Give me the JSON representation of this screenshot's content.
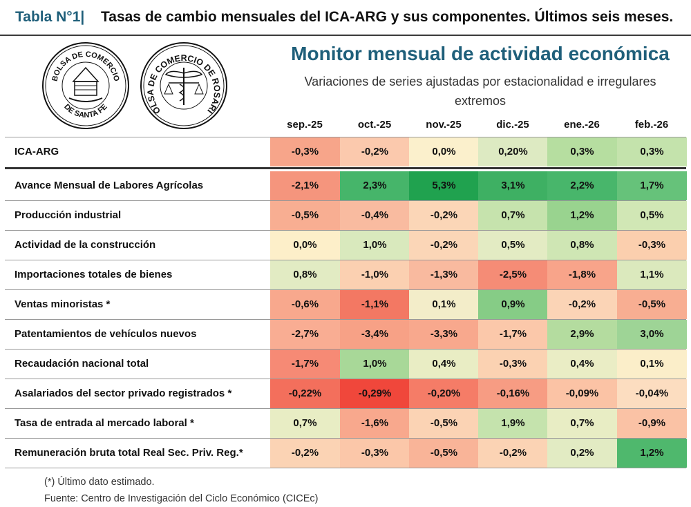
{
  "header": {
    "prefix": "Tabla N°1|",
    "title": "Tasas de cambio mensuales del ICA-ARG y sus componentes. Últimos seis meses."
  },
  "logos": {
    "seal1_text_top": "BOLSA DE COMERCIO",
    "seal1_text_bottom": "DE SANTA FE",
    "seal2_text": "BOLSA DE COMERCIO DE ROSARIO"
  },
  "monitor": {
    "title": "Monitor mensual de actividad económica",
    "subtitle_line1": "Variaciones de series ajustadas por estacionalidad e irregulares",
    "subtitle_line2": "extremos"
  },
  "chart_data": {
    "type": "table",
    "columns": [
      "sep.-25",
      "oct.-25",
      "nov.-25",
      "dic.-25",
      "ene.-26",
      "feb.-26"
    ],
    "rows": [
      {
        "label": "ICA-ARG",
        "values": [
          "-0,3%",
          "-0,2%",
          "0,0%",
          "0,20%",
          "0,3%",
          "0,3%"
        ],
        "colors": [
          "#f7a58a",
          "#fbc9ad",
          "#fbf0cc",
          "#ddeac2",
          "#b6dea0",
          "#c4e3ac"
        ]
      },
      {
        "label": "Avance Mensual de Labores Agrícolas",
        "values": [
          "-2,1%",
          "2,3%",
          "5,3%",
          "3,1%",
          "2,2%",
          "1,7%"
        ],
        "colors": [
          "#f5957d",
          "#46b56a",
          "#20a24f",
          "#3eb063",
          "#48b66b",
          "#66c27a"
        ]
      },
      {
        "label": "Producción industrial",
        "values": [
          "-0,5%",
          "-0,4%",
          "-0,2%",
          "0,7%",
          "1,2%",
          "0,5%"
        ],
        "colors": [
          "#f8ae92",
          "#f9bba0",
          "#fbd6b7",
          "#c6e3ad",
          "#99d38f",
          "#d1e7b5"
        ]
      },
      {
        "label": "Actividad de la construcción",
        "values": [
          "0,0%",
          "1,0%",
          "-0,2%",
          "0,5%",
          "0,8%",
          "-0,3%"
        ],
        "colors": [
          "#fdefc9",
          "#d9e9bd",
          "#fbd6b7",
          "#e3ebc3",
          "#cfe6b4",
          "#fbcfae"
        ]
      },
      {
        "label": "Importaciones totales de bienes",
        "values": [
          "0,8%",
          "-1,0%",
          "-1,3%",
          "-2,5%",
          "-1,8%",
          "1,1%"
        ],
        "colors": [
          "#e2ebc3",
          "#fbd0b1",
          "#f9ba9f",
          "#f58c76",
          "#f8a48a",
          "#dbe9bd"
        ]
      },
      {
        "label": "Ventas minoristas *",
        "values": [
          "-0,6%",
          "-1,1%",
          "0,1%",
          "0,9%",
          "-0,2%",
          "-0,5%"
        ],
        "colors": [
          "#f8a88d",
          "#f37863",
          "#f3edc9",
          "#86cc86",
          "#fbd4b6",
          "#f8ae92"
        ]
      },
      {
        "label": "Patentamientos de vehículos nuevos",
        "values": [
          "-2,7%",
          "-3,4%",
          "-3,3%",
          "-1,7%",
          "2,9%",
          "3,0%"
        ],
        "colors": [
          "#f9ad93",
          "#f7a186",
          "#f8a88d",
          "#fbc8aa",
          "#b4dc9f",
          "#9ed496"
        ]
      },
      {
        "label": "Recaudación nacional total",
        "values": [
          "-1,7%",
          "1,0%",
          "0,4%",
          "-0,3%",
          "0,4%",
          "0,1%"
        ],
        "colors": [
          "#f68a75",
          "#a8d898",
          "#e9edc4",
          "#fbd2b2",
          "#eaedc5",
          "#fbeec9"
        ]
      },
      {
        "label": "Asalariados del sector privado registrados *",
        "values": [
          "-0,22%",
          "-0,29%",
          "-0,20%",
          "-0,16%",
          "-0,09%",
          "-0,04%"
        ],
        "colors": [
          "#f36f5c",
          "#f0473b",
          "#f57c67",
          "#f79c83",
          "#fbc3a5",
          "#fcddc0"
        ]
      },
      {
        "label": "Tasa de entrada al mercado laboral *",
        "values": [
          "0,7%",
          "-1,6%",
          "-0,5%",
          "1,9%",
          "0,7%",
          "-0,9%"
        ],
        "colors": [
          "#e8edc4",
          "#f8a88d",
          "#fbd3b4",
          "#c5e3ad",
          "#e8edc4",
          "#fac2a5"
        ]
      },
      {
        "label": "Remuneración bruta total Real Sec. Priv. Reg.*",
        "values": [
          "-0,2%",
          "-0,3%",
          "-0,5%",
          "-0,2%",
          "0,2%",
          "1,2%"
        ],
        "colors": [
          "#fbd3b4",
          "#fbc7a9",
          "#f9b498",
          "#fbd3b4",
          "#e2ebc3",
          "#4fb86d"
        ]
      }
    ]
  },
  "footer": {
    "note": "(*) Último dato estimado.",
    "source": "Fuente: Centro de Investigación del Ciclo Económico (CICEc)"
  }
}
